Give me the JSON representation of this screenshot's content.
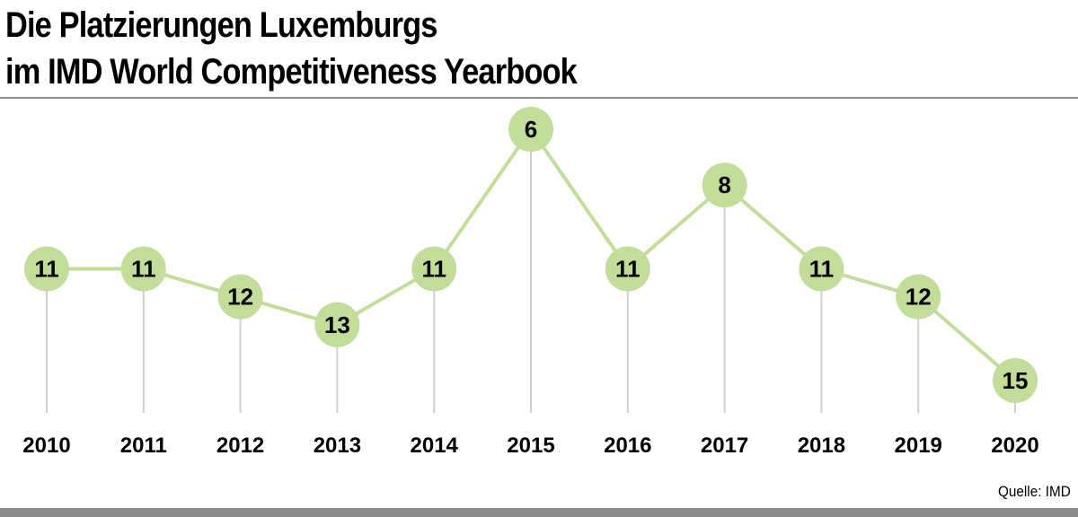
{
  "title": {
    "line1": "Die Platzierungen Luxemburgs",
    "line2": "im IMD World Competitiveness Yearbook"
  },
  "source": "Quelle: IMD",
  "colors": {
    "marker": "#c2dc99",
    "line": "#c2dc99",
    "stem": "#cfcfcf",
    "rule": "#8a8a8a",
    "text": "#000000"
  },
  "chart_data": {
    "type": "line",
    "title": "Die Platzierungen Luxemburgs im IMD World Competitiveness Yearbook",
    "categories": [
      "2010",
      "2011",
      "2012",
      "2013",
      "2014",
      "2015",
      "2016",
      "2017",
      "2018",
      "2019",
      "2020"
    ],
    "values": [
      11,
      11,
      12,
      13,
      11,
      6,
      11,
      8,
      11,
      12,
      15
    ],
    "data_labels": [
      "11",
      "11",
      "12",
      "13",
      "11",
      "6",
      "11",
      "8",
      "11",
      "12",
      "15"
    ],
    "y_axis_inverted": true,
    "grid": false,
    "legend": "none"
  }
}
